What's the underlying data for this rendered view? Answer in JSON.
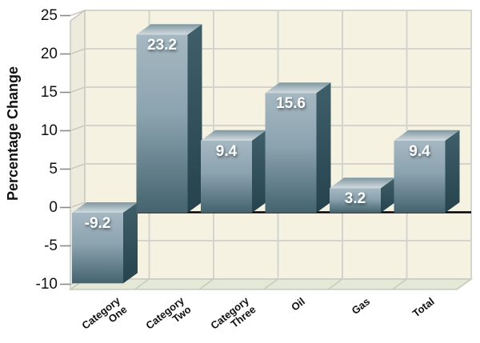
{
  "chart_data": {
    "type": "bar",
    "title": "",
    "xlabel": "",
    "ylabel": "Percentage Change",
    "categories": [
      "Category One",
      "Category Two",
      "Category Three",
      "Oil",
      "Gas",
      "Total"
    ],
    "category_tick_lines": [
      [
        "Category",
        "One"
      ],
      [
        "Category",
        "Two"
      ],
      [
        "Category",
        "Three"
      ],
      [
        "Oil"
      ],
      [
        "Gas"
      ],
      [
        "Total"
      ]
    ],
    "values": [
      -9.2,
      23.2,
      9.4,
      15.6,
      3.2,
      9.4
    ],
    "value_labels": [
      "-9.2",
      "23.2",
      "9.4",
      "15.6",
      "3.2",
      "9.4"
    ],
    "yticks": [
      25,
      20,
      15,
      10,
      5,
      0,
      -5,
      -10
    ],
    "ytick_labels": [
      "25",
      "20",
      "15",
      "10",
      "5",
      "0",
      "-5",
      "-10"
    ],
    "ylim": [
      -10,
      25
    ],
    "grid": true,
    "legend": false,
    "style": {
      "back_wall_color": "#f5f2e1",
      "side_wall_color": "#edebdb",
      "floor_color": "#e4e8d6",
      "gridline_color": "#d4d4cd",
      "wall_edge_color": "#c9c9c1",
      "tick_color": "#8a8a84",
      "bar_front_top": "#a6b8c2",
      "bar_front_mid": "#8ba3af",
      "bar_front_bottom": "#44636e",
      "bar_side_top": "#3f5f6a",
      "bar_side_bottom": "#26434d",
      "bar_top_front": "#d2dade",
      "bar_top_back": "#7e97a2",
      "zero_line_color": "#000000",
      "value_label_color": "#ffffff",
      "axis_text_color": "#111111"
    }
  }
}
